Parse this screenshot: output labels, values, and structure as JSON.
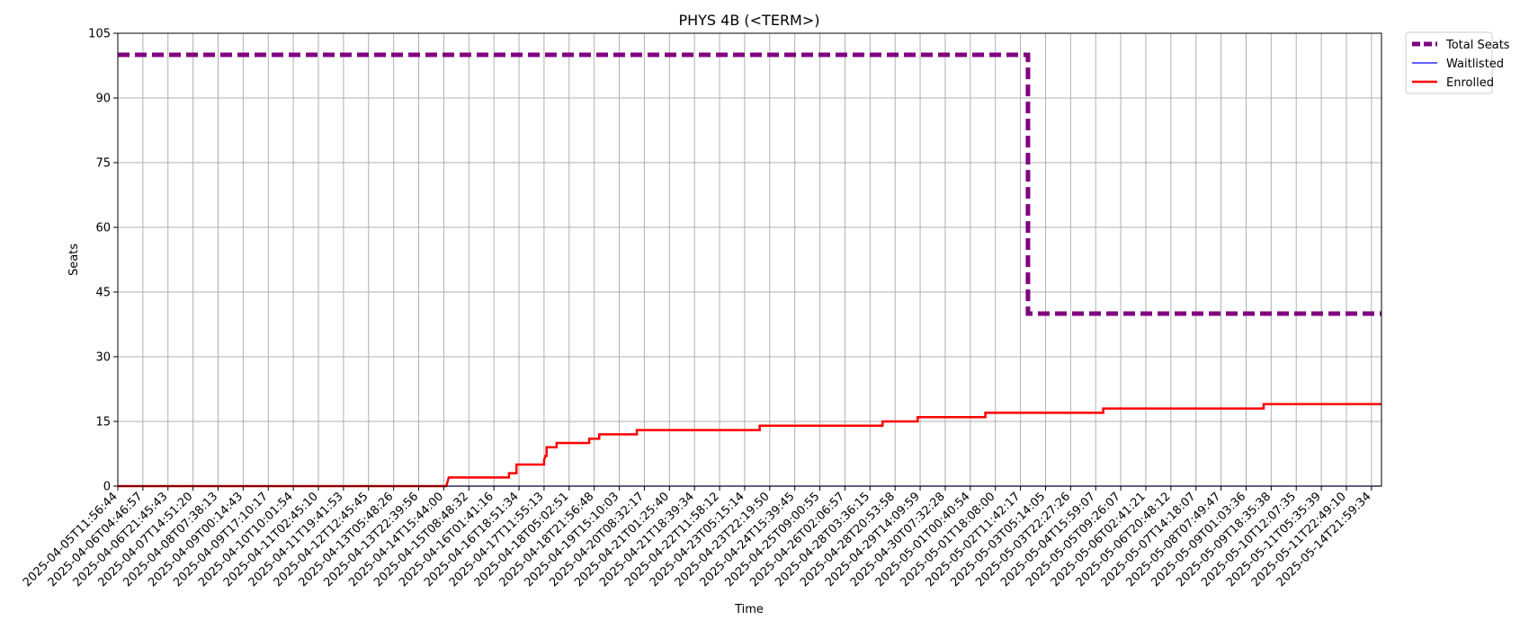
{
  "chart_data": {
    "type": "line",
    "title": "PHYS 4B (<TERM>)",
    "xlabel": "Time",
    "ylabel": "Seats",
    "ylim": [
      0,
      105
    ],
    "yticks": [
      0,
      15,
      30,
      45,
      60,
      75,
      90,
      105
    ],
    "grid": true,
    "legend_position": "outside top-right",
    "x_tick_labels": [
      "2025-04-05T11:56:44",
      "2025-04-06T04:46:57",
      "2025-04-06T21:45:43",
      "2025-04-07T14:51:20",
      "2025-04-08T07:38:13",
      "2025-04-09T00:14:43",
      "2025-04-09T17:10:17",
      "2025-04-10T10:01:54",
      "2025-04-11T02:45:10",
      "2025-04-11T19:41:53",
      "2025-04-12T12:45:45",
      "2025-04-13T05:48:26",
      "2025-04-13T22:39:56",
      "2025-04-14T15:44:00",
      "2025-04-15T08:48:32",
      "2025-04-16T01:41:16",
      "2025-04-16T18:51:34",
      "2025-04-17T11:55:13",
      "2025-04-18T05:02:51",
      "2025-04-18T21:56:48",
      "2025-04-19T15:10:03",
      "2025-04-20T08:32:17",
      "2025-04-21T01:25:40",
      "2025-04-21T18:39:34",
      "2025-04-22T11:58:12",
      "2025-04-23T05:15:14",
      "2025-04-23T22:19:50",
      "2025-04-24T15:39:45",
      "2025-04-25T09:00:55",
      "2025-04-26T02:06:57",
      "2025-04-28T03:36:15",
      "2025-04-28T20:53:58",
      "2025-04-29T14:09:59",
      "2025-04-30T07:32:28",
      "2025-05-01T00:40:54",
      "2025-05-01T18:08:00",
      "2025-05-02T11:42:17",
      "2025-05-03T05:14:05",
      "2025-05-03T22:27:26",
      "2025-05-04T15:59:07",
      "2025-05-05T09:26:07",
      "2025-05-06T02:41:21",
      "2025-05-06T20:48:12",
      "2025-05-07T14:18:07",
      "2025-05-08T07:49:47",
      "2025-05-09T01:03:36",
      "2025-05-09T18:35:38",
      "2025-05-10T12:07:35",
      "2025-05-11T05:35:39",
      "2025-05-11T22:49:10",
      "2025-05-14T21:59:34"
    ],
    "x_range": [
      0,
      50.4
    ],
    "series": [
      {
        "name": "Total Seats",
        "color": "#800080",
        "style": "dashed",
        "points": [
          [
            0,
            100
          ],
          [
            36.3,
            100
          ],
          [
            36.3,
            40
          ],
          [
            50.4,
            40
          ]
        ]
      },
      {
        "name": "Waitlisted",
        "color": "#0000ff",
        "style": "solid-thin",
        "points": [
          [
            0,
            0
          ],
          [
            50.4,
            0
          ]
        ]
      },
      {
        "name": "Enrolled",
        "color": "#ff0000",
        "style": "solid",
        "points": [
          [
            0,
            0
          ],
          [
            13.1,
            0
          ],
          [
            13.15,
            1
          ],
          [
            13.2,
            2
          ],
          [
            15.6,
            2
          ],
          [
            15.6,
            3
          ],
          [
            15.9,
            3
          ],
          [
            15.9,
            5
          ],
          [
            17.0,
            5
          ],
          [
            17.0,
            6
          ],
          [
            17.05,
            7
          ],
          [
            17.1,
            7
          ],
          [
            17.1,
            9
          ],
          [
            17.5,
            9
          ],
          [
            17.5,
            10
          ],
          [
            18.8,
            10
          ],
          [
            18.8,
            11
          ],
          [
            19.2,
            11
          ],
          [
            19.2,
            12
          ],
          [
            20.7,
            12
          ],
          [
            20.7,
            13
          ],
          [
            25.6,
            13
          ],
          [
            25.6,
            14
          ],
          [
            30.5,
            14
          ],
          [
            30.5,
            15
          ],
          [
            31.9,
            15
          ],
          [
            31.9,
            16
          ],
          [
            34.6,
            16
          ],
          [
            34.6,
            17
          ],
          [
            39.3,
            17
          ],
          [
            39.3,
            18
          ],
          [
            45.7,
            18
          ],
          [
            45.7,
            19
          ],
          [
            50.4,
            19
          ]
        ]
      }
    ]
  }
}
